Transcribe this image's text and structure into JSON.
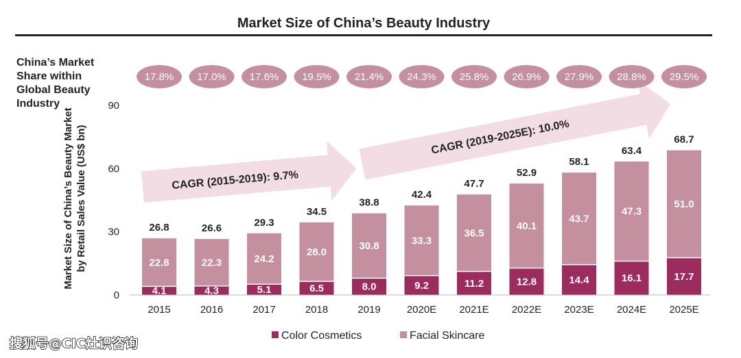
{
  "chart_data": {
    "type": "bar",
    "stacked": true,
    "title": "Market Size of China’s Beauty Industry",
    "ylabel": "Market Size of China’s Beauty Market by Retail Sales Value (US$ bn)",
    "xlabel": "",
    "ylim": [
      0,
      90
    ],
    "yticks": [
      0,
      30,
      60,
      90
    ],
    "categories": [
      "2015",
      "2016",
      "2017",
      "2018",
      "2019",
      "2020E",
      "2021E",
      "2022E",
      "2023E",
      "2024E",
      "2025E"
    ],
    "series": [
      {
        "name": "Color Cosmetics",
        "values": [
          4.1,
          4.3,
          5.1,
          6.5,
          8.0,
          9.2,
          11.2,
          12.8,
          14.4,
          16.1,
          17.7
        ],
        "color": "#9c2b5e"
      },
      {
        "name": "Facial Skincare",
        "values": [
          22.8,
          22.3,
          24.2,
          28.0,
          30.8,
          33.3,
          36.5,
          40.1,
          43.7,
          47.3,
          51.0
        ],
        "color": "#c48f9f"
      }
    ],
    "totals": [
      "26.8",
      "26.6",
      "29.3",
      "34.5",
      "38.8",
      "42.4",
      "47.7",
      "52.9",
      "58.1",
      "63.4",
      "68.7"
    ],
    "cosmetics_labels": [
      "4.1",
      "4.3",
      "5.1",
      "6.5",
      "8.0",
      "9.2",
      "11.2",
      "12.8",
      "14.4",
      "16.1",
      "17.7"
    ],
    "skincare_labels": [
      "22.8",
      "22.3",
      "24.2",
      "28.0",
      "30.8",
      "33.3",
      "36.5",
      "40.1",
      "43.7",
      "47.3",
      "51.0"
    ],
    "global_share_label": [
      "China’s Market",
      "Share within",
      "Global Beauty",
      "Industry"
    ],
    "global_share": [
      "17.8%",
      "17.0%",
      "17.6%",
      "19.5%",
      "21.4%",
      "24.3%",
      "25.8%",
      "26.9%",
      "27.9%",
      "28.8%",
      "29.5%"
    ],
    "annotations": [
      {
        "text": "CAGR (2015-2019): 9.7%",
        "from": "2015",
        "to": "2019"
      },
      {
        "text": "CAGR (2019-2025E): 10.0%",
        "from": "2019",
        "to": "2025E"
      }
    ],
    "legend": [
      "Color Cosmetics",
      "Facial Skincare"
    ],
    "legend_position": "bottom",
    "grid": false
  },
  "watermark": "搜狐号@CIC灶识咨询",
  "colors": {
    "cosmetics": "#9c2b5e",
    "skincare": "#c48f9f",
    "share_pill": "#c48f9f",
    "cagr_arrow": "#f2dde4"
  }
}
